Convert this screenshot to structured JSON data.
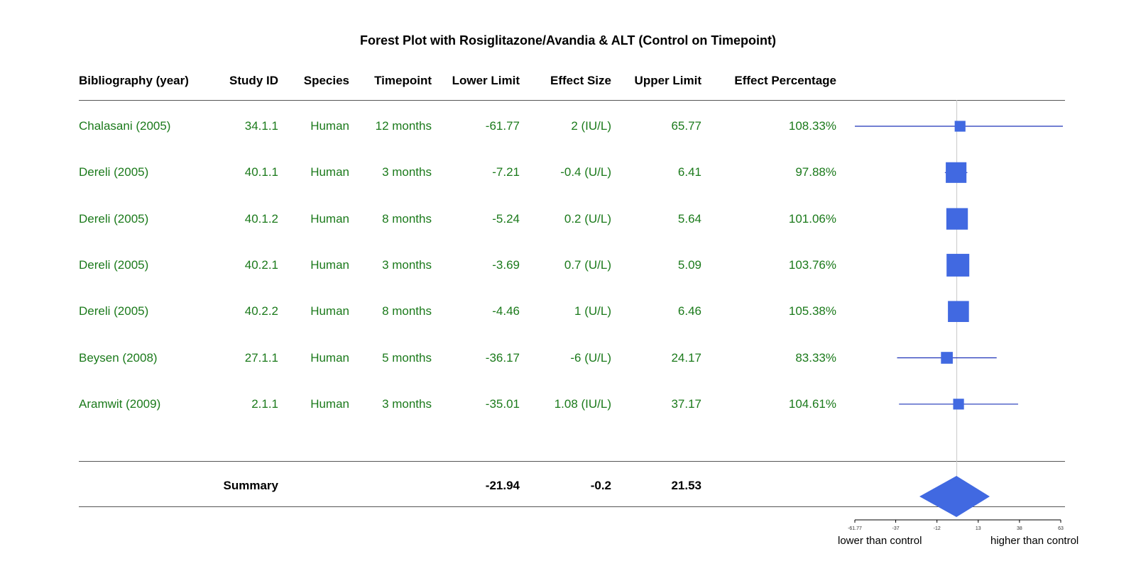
{
  "chart_data": {
    "type": "forest",
    "title": "Forest Plot with Rosiglitazone/Avandia & ALT (Control on Timepoint)",
    "columns": [
      "Bibliography (year)",
      "Study ID",
      "Species",
      "Timepoint",
      "Lower Limit",
      "Effect Size",
      "Upper Limit",
      "Effect Percentage"
    ],
    "rows": [
      {
        "bib": "Chalasani (2005)",
        "id": "34.1.1",
        "species": "Human",
        "timepoint": "12 months",
        "lower": "-61.77",
        "effect": "2 (IU/L)",
        "upper": "65.77",
        "pct": "108.33%",
        "lo": -61.77,
        "es": 2,
        "hi": 65.77,
        "weight": 0.3
      },
      {
        "bib": "Dereli (2005)",
        "id": "40.1.1",
        "species": "Human",
        "timepoint": "3 months",
        "lower": "-7.21",
        "effect": "-0.4 (U/L)",
        "upper": "6.41",
        "pct": "97.88%",
        "lo": -7.21,
        "es": -0.4,
        "hi": 6.41,
        "weight": 0.88
      },
      {
        "bib": "Dereli (2005)",
        "id": "40.1.2",
        "species": "Human",
        "timepoint": "8 months",
        "lower": "-5.24",
        "effect": "0.2 (U/L)",
        "upper": "5.64",
        "pct": "101.06%",
        "lo": -5.24,
        "es": 0.2,
        "hi": 5.64,
        "weight": 0.93
      },
      {
        "bib": "Dereli (2005)",
        "id": "40.2.1",
        "species": "Human",
        "timepoint": "3 months",
        "lower": "-3.69",
        "effect": "0.7 (U/L)",
        "upper": "5.09",
        "pct": "103.76%",
        "lo": -3.69,
        "es": 0.7,
        "hi": 5.09,
        "weight": 1.0
      },
      {
        "bib": "Dereli (2005)",
        "id": "40.2.2",
        "species": "Human",
        "timepoint": "8 months",
        "lower": "-4.46",
        "effect": "1 (U/L)",
        "upper": "6.46",
        "pct": "105.38%",
        "lo": -4.46,
        "es": 1,
        "hi": 6.46,
        "weight": 0.9
      },
      {
        "bib": "Beysen (2008)",
        "id": "27.1.1",
        "species": "Human",
        "timepoint": "5 months",
        "lower": "-36.17",
        "effect": "-6 (U/L)",
        "upper": "24.17",
        "pct": "83.33%",
        "lo": -36.17,
        "es": -6,
        "hi": 24.17,
        "weight": 0.36
      },
      {
        "bib": "Aramwit (2009)",
        "id": "2.1.1",
        "species": "Human",
        "timepoint": "3 months",
        "lower": "-35.01",
        "effect": "1.08 (IU/L)",
        "upper": "37.17",
        "pct": "104.61%",
        "lo": -35.01,
        "es": 1.08,
        "hi": 37.17,
        "weight": 0.3
      }
    ],
    "summary": {
      "label": "Summary",
      "lower": "-21.94",
      "effect": "-0.2",
      "upper": "21.53",
      "lo": -21.94,
      "es": -0.2,
      "hi": 21.53
    },
    "x_ticks": [
      "-61.77",
      "-37",
      "-12",
      "13",
      "38",
      "63"
    ],
    "x_tick_values": [
      -61.77,
      -37,
      -12,
      13,
      38,
      63
    ],
    "xlim": [
      -61.77,
      63
    ],
    "xlabel_left": "lower than control",
    "xlabel_right": "higher than control",
    "reference_value": 0,
    "colors": {
      "text_rows": "#1b7a1b",
      "marker": "#4169e1",
      "ci_line": "#1d33b8",
      "reference_line": "#c8c8c8"
    }
  }
}
